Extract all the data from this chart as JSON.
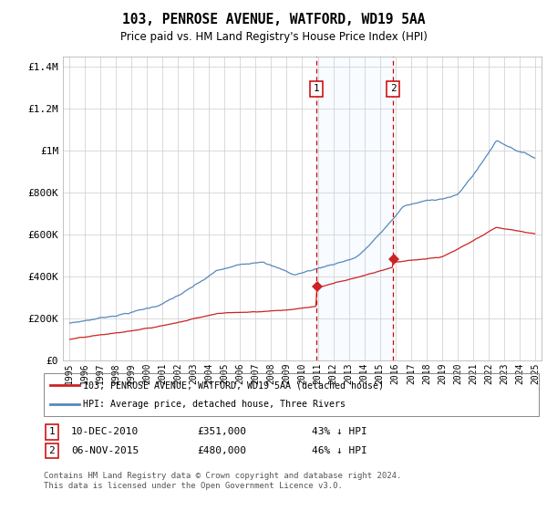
{
  "title1": "103, PENROSE AVENUE, WATFORD, WD19 5AA",
  "title2": "Price paid vs. HM Land Registry's House Price Index (HPI)",
  "ylim": [
    0,
    1450000
  ],
  "yticks": [
    0,
    200000,
    400000,
    600000,
    800000,
    1000000,
    1200000,
    1400000
  ],
  "ytick_labels": [
    "£0",
    "£200K",
    "£400K",
    "£600K",
    "£800K",
    "£1M",
    "£1.2M",
    "£1.4M"
  ],
  "hpi_color": "#5588bb",
  "price_color": "#cc2222",
  "shade_color": "#ddeeff",
  "vline_color": "#cc0000",
  "sale1_x": 2010.92,
  "sale1_price": 351000,
  "sale2_x": 2015.84,
  "sale2_price": 480000,
  "legend_line1": "103, PENROSE AVENUE, WATFORD, WD19 5AA (detached house)",
  "legend_line2": "HPI: Average price, detached house, Three Rivers",
  "footer": "Contains HM Land Registry data © Crown copyright and database right 2024.\nThis data is licensed under the Open Government Licence v3.0.",
  "bg_color": "#ffffff",
  "grid_color": "#cccccc",
  "xmin": 1994.6,
  "xmax": 2025.4
}
